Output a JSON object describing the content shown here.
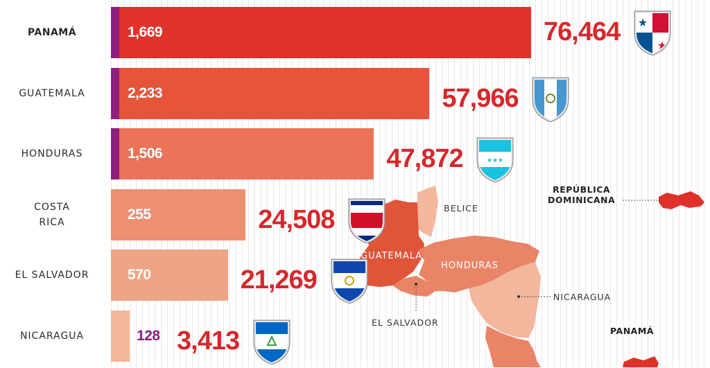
{
  "chart_data": {
    "type": "bar",
    "orientation": "horizontal",
    "categories": [
      "PANAMÁ",
      "GUATEMALA",
      "HONDURAS",
      "COSTA RICA",
      "EL SALVADOR",
      "NICARAGUA"
    ],
    "series": [
      {
        "values": [
          76464,
          57966,
          47872,
          24508,
          21269,
          3413
        ]
      },
      {
        "values": [
          1669,
          2233,
          1506,
          255,
          570,
          128
        ]
      }
    ],
    "value_labels": [
      "76,464",
      "57,966",
      "47,872",
      "24,508",
      "21,269",
      "3,413"
    ],
    "bar_labels": [
      "1,669",
      "2,233",
      "1,506",
      "255",
      "570",
      "128"
    ],
    "grid": true,
    "legend": "none"
  },
  "rows": [
    {
      "label_lines": [
        "PANAMÁ"
      ],
      "bold": true,
      "flag": "panama-flag-shield"
    },
    {
      "label_lines": [
        "GUATEMALA"
      ],
      "bold": false,
      "flag": "guatemala-flag-shield"
    },
    {
      "label_lines": [
        "HONDURAS"
      ],
      "bold": false,
      "flag": "honduras-flag-shield"
    },
    {
      "label_lines": [
        "COSTA",
        "RICA"
      ],
      "bold": false,
      "flag": "costa-rica-flag-shield"
    },
    {
      "label_lines": [
        "EL SALVADOR"
      ],
      "bold": false,
      "flag": "el-salvador-flag-shield"
    },
    {
      "label_lines": [
        "NICARAGUA"
      ],
      "bold": false,
      "flag": "nicaragua-flag-shield"
    }
  ],
  "map": {
    "labels": {
      "belice": "BELICE",
      "guatemala": "GUATEMALA",
      "honduras": "HONDURAS",
      "nicaragua": "NICARAGUA",
      "el_salvador": "EL SALVADOR",
      "rep_dom": [
        "REPÚBLICA",
        "DOMINICANA"
      ],
      "panama": "PANAMÁ"
    }
  },
  "colors": {
    "bars": [
      "#e0312a",
      "#e6553a",
      "#ea7358",
      "#ee8f72",
      "#f0a486",
      "#f3b89c"
    ],
    "accent": "#8e1f7e",
    "total_text": "#d6282c",
    "map_dark": "#e0553a",
    "map_mid": "#ea8466",
    "map_light": "#f2b79c"
  }
}
